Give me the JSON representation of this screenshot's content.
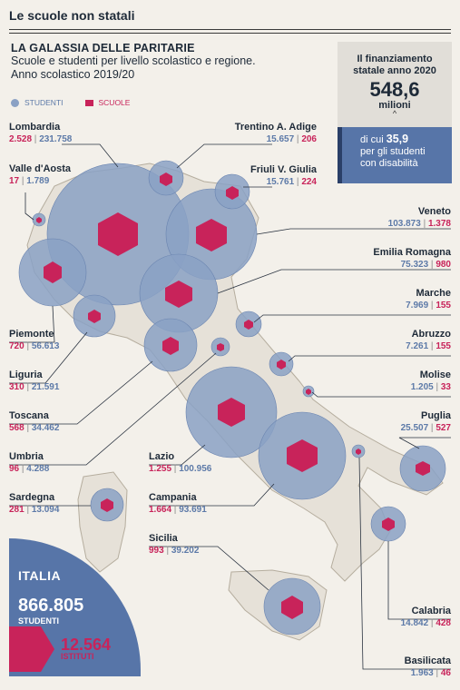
{
  "header": {
    "section": "Le scuole non statali"
  },
  "title": {
    "heading": "LA GALASSIA DELLE PARITARIE",
    "line1": "Scuole e studenti per livello scolastico e regione.",
    "line2": "Anno scolastico 2019/20"
  },
  "legend": {
    "students": "STUDENTI",
    "schools": "SCUOLE"
  },
  "funding": {
    "line1": "Il finanziamento",
    "line2": "statale anno 2020",
    "amount": "548,6",
    "unit": "milioni",
    "dis_pre": "di cui",
    "dis_amount": "35,9",
    "dis_line2": "per gli studenti",
    "dis_line3": "con disabilità"
  },
  "total": {
    "label": "ITALIA",
    "students": "866.805",
    "students_label": "STUDENTI",
    "schools": "12.564",
    "schools_label": "ISTITUTI"
  },
  "colors": {
    "students": "#8aa1c4",
    "schools": "#c8235a",
    "accent_box": "#5775a8"
  },
  "regions": [
    {
      "id": "lombardia",
      "name": "Lombardia",
      "schools": "2.528",
      "students": "231.758"
    },
    {
      "id": "valle-daosta",
      "name": "Valle d'Aosta",
      "schools": "17",
      "students": "1.789"
    },
    {
      "id": "piemonte",
      "name": "Piemonte",
      "schools": "720",
      "students": "56.613"
    },
    {
      "id": "liguria",
      "name": "Liguria",
      "schools": "310",
      "students": "21.591"
    },
    {
      "id": "toscana",
      "name": "Toscana",
      "schools": "568",
      "students": "34.462"
    },
    {
      "id": "umbria",
      "name": "Umbria",
      "schools": "96",
      "students": "4.288"
    },
    {
      "id": "sardegna",
      "name": "Sardegna",
      "schools": "281",
      "students": "13.094"
    },
    {
      "id": "trentino",
      "name": "Trentino A. Adige",
      "schools": "206",
      "students": "15.657"
    },
    {
      "id": "friuli",
      "name": "Friuli V. Giulia",
      "schools": "224",
      "students": "15.761"
    },
    {
      "id": "veneto",
      "name": "Veneto",
      "schools": "1.378",
      "students": "103.873"
    },
    {
      "id": "emilia",
      "name": "Emilia Romagna",
      "schools": "980",
      "students": "75.323"
    },
    {
      "id": "marche",
      "name": "Marche",
      "schools": "155",
      "students": "7.969"
    },
    {
      "id": "abruzzo",
      "name": "Abruzzo",
      "schools": "155",
      "students": "7.261"
    },
    {
      "id": "molise",
      "name": "Molise",
      "schools": "33",
      "students": "1.205"
    },
    {
      "id": "puglia",
      "name": "Puglia",
      "schools": "527",
      "students": "25.507"
    },
    {
      "id": "lazio",
      "name": "Lazio",
      "schools": "1.255",
      "students": "100.956"
    },
    {
      "id": "campania",
      "name": "Campania",
      "schools": "1.664",
      "students": "93.691"
    },
    {
      "id": "sicilia",
      "name": "Sicilia",
      "schools": "993",
      "students": "39.202"
    },
    {
      "id": "calabria",
      "name": "Calabria",
      "schools": "428",
      "students": "14.842"
    },
    {
      "id": "basilicata",
      "name": "Basilicata",
      "schools": "46",
      "students": "1.963"
    }
  ]
}
